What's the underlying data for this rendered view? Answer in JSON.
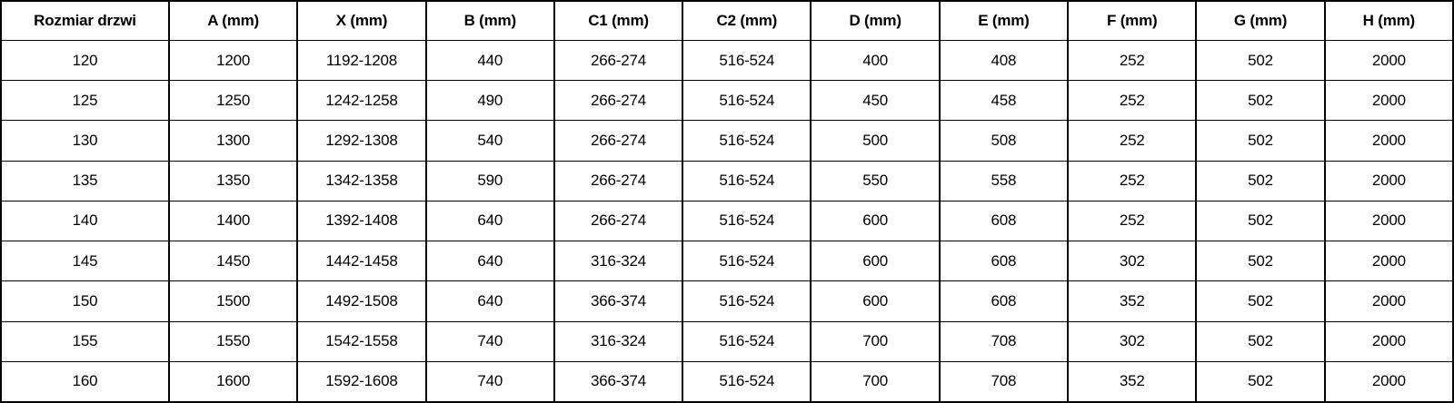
{
  "colors": {
    "border": "#000000",
    "text": "#000000",
    "background": "#ffffff"
  },
  "chart_data": {
    "type": "table",
    "title": "",
    "columns": [
      "Rozmiar drzwi",
      "A (mm)",
      "X (mm)",
      "B (mm)",
      "C1 (mm)",
      "C2 (mm)",
      "D (mm)",
      "E (mm)",
      "F (mm)",
      "G (mm)",
      "H (mm)"
    ],
    "rows": [
      [
        "120",
        "1200",
        "1192-1208",
        "440",
        "266-274",
        "516-524",
        "400",
        "408",
        "252",
        "502",
        "2000"
      ],
      [
        "125",
        "1250",
        "1242-1258",
        "490",
        "266-274",
        "516-524",
        "450",
        "458",
        "252",
        "502",
        "2000"
      ],
      [
        "130",
        "1300",
        "1292-1308",
        "540",
        "266-274",
        "516-524",
        "500",
        "508",
        "252",
        "502",
        "2000"
      ],
      [
        "135",
        "1350",
        "1342-1358",
        "590",
        "266-274",
        "516-524",
        "550",
        "558",
        "252",
        "502",
        "2000"
      ],
      [
        "140",
        "1400",
        "1392-1408",
        "640",
        "266-274",
        "516-524",
        "600",
        "608",
        "252",
        "502",
        "2000"
      ],
      [
        "145",
        "1450",
        "1442-1458",
        "640",
        "316-324",
        "516-524",
        "600",
        "608",
        "302",
        "502",
        "2000"
      ],
      [
        "150",
        "1500",
        "1492-1508",
        "640",
        "366-374",
        "516-524",
        "600",
        "608",
        "352",
        "502",
        "2000"
      ],
      [
        "155",
        "1550",
        "1542-1558",
        "740",
        "316-324",
        "516-524",
        "700",
        "708",
        "302",
        "502",
        "2000"
      ],
      [
        "160",
        "1600",
        "1592-1608",
        "740",
        "366-374",
        "516-524",
        "700",
        "708",
        "352",
        "502",
        "2000"
      ]
    ]
  }
}
